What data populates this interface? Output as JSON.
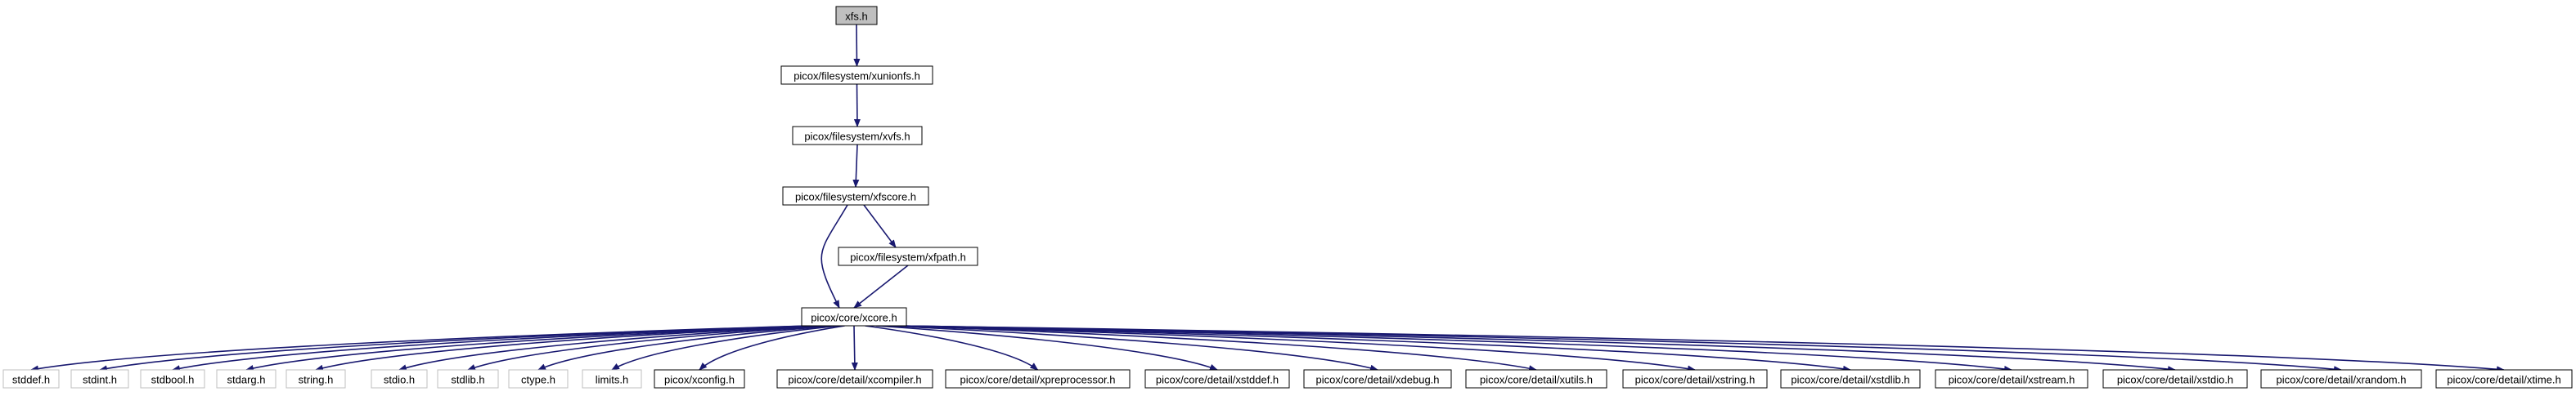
{
  "colors": {
    "root_fill": "#bfbfbf",
    "node_fill": "#ffffff",
    "node_border": "#000000",
    "external_border": "#bfbfbf",
    "edge": "#191970"
  },
  "nodes": [
    {
      "id": "xfs",
      "label": "xfs.h",
      "kind": "root"
    },
    {
      "id": "xunionfs",
      "label": "picox/filesystem/xunionfs.h",
      "kind": "file"
    },
    {
      "id": "xvfs",
      "label": "picox/filesystem/xvfs.h",
      "kind": "file"
    },
    {
      "id": "xfscore",
      "label": "picox/filesystem/xfscore.h",
      "kind": "file"
    },
    {
      "id": "xfpath",
      "label": "picox/filesystem/xfpath.h",
      "kind": "file"
    },
    {
      "id": "xcore",
      "label": "picox/core/xcore.h",
      "kind": "file"
    },
    {
      "id": "stddef",
      "label": "stddef.h",
      "kind": "external"
    },
    {
      "id": "stdint",
      "label": "stdint.h",
      "kind": "external"
    },
    {
      "id": "stdbool",
      "label": "stdbool.h",
      "kind": "external"
    },
    {
      "id": "stdarg",
      "label": "stdarg.h",
      "kind": "external"
    },
    {
      "id": "string",
      "label": "string.h",
      "kind": "external"
    },
    {
      "id": "stdio",
      "label": "stdio.h",
      "kind": "external"
    },
    {
      "id": "stdlib",
      "label": "stdlib.h",
      "kind": "external"
    },
    {
      "id": "ctype",
      "label": "ctype.h",
      "kind": "external"
    },
    {
      "id": "limits",
      "label": "limits.h",
      "kind": "external"
    },
    {
      "id": "xconfig",
      "label": "picox/xconfig.h",
      "kind": "file"
    },
    {
      "id": "xcompiler",
      "label": "picox/core/detail/xcompiler.h",
      "kind": "file"
    },
    {
      "id": "xpreprocessor",
      "label": "picox/core/detail/xpreprocessor.h",
      "kind": "file"
    },
    {
      "id": "xstddef",
      "label": "picox/core/detail/xstddef.h",
      "kind": "file"
    },
    {
      "id": "xdebug",
      "label": "picox/core/detail/xdebug.h",
      "kind": "file"
    },
    {
      "id": "xutils",
      "label": "picox/core/detail/xutils.h",
      "kind": "file"
    },
    {
      "id": "xstring",
      "label": "picox/core/detail/xstring.h",
      "kind": "file"
    },
    {
      "id": "xstdlib",
      "label": "picox/core/detail/xstdlib.h",
      "kind": "file"
    },
    {
      "id": "xstream",
      "label": "picox/core/detail/xstream.h",
      "kind": "file"
    },
    {
      "id": "xstdio",
      "label": "picox/core/detail/xstdio.h",
      "kind": "file"
    },
    {
      "id": "xrandom",
      "label": "picox/core/detail/xrandom.h",
      "kind": "file"
    },
    {
      "id": "xtime",
      "label": "picox/core/detail/xtime.h",
      "kind": "file"
    }
  ],
  "edges": [
    {
      "from": "xfs",
      "to": "xunionfs"
    },
    {
      "from": "xunionfs",
      "to": "xvfs"
    },
    {
      "from": "xvfs",
      "to": "xfscore"
    },
    {
      "from": "xfscore",
      "to": "xfpath"
    },
    {
      "from": "xfscore",
      "to": "xcore"
    },
    {
      "from": "xfpath",
      "to": "xcore"
    },
    {
      "from": "xcore",
      "to": "stddef"
    },
    {
      "from": "xcore",
      "to": "stdint"
    },
    {
      "from": "xcore",
      "to": "stdbool"
    },
    {
      "from": "xcore",
      "to": "stdarg"
    },
    {
      "from": "xcore",
      "to": "string"
    },
    {
      "from": "xcore",
      "to": "stdio"
    },
    {
      "from": "xcore",
      "to": "stdlib"
    },
    {
      "from": "xcore",
      "to": "ctype"
    },
    {
      "from": "xcore",
      "to": "limits"
    },
    {
      "from": "xcore",
      "to": "xconfig"
    },
    {
      "from": "xcore",
      "to": "xcompiler"
    },
    {
      "from": "xcore",
      "to": "xpreprocessor"
    },
    {
      "from": "xcore",
      "to": "xstddef"
    },
    {
      "from": "xcore",
      "to": "xdebug"
    },
    {
      "from": "xcore",
      "to": "xutils"
    },
    {
      "from": "xcore",
      "to": "xstring"
    },
    {
      "from": "xcore",
      "to": "xstdlib"
    },
    {
      "from": "xcore",
      "to": "xstream"
    },
    {
      "from": "xcore",
      "to": "xstdio"
    },
    {
      "from": "xcore",
      "to": "xrandom"
    },
    {
      "from": "xcore",
      "to": "xtime"
    }
  ]
}
